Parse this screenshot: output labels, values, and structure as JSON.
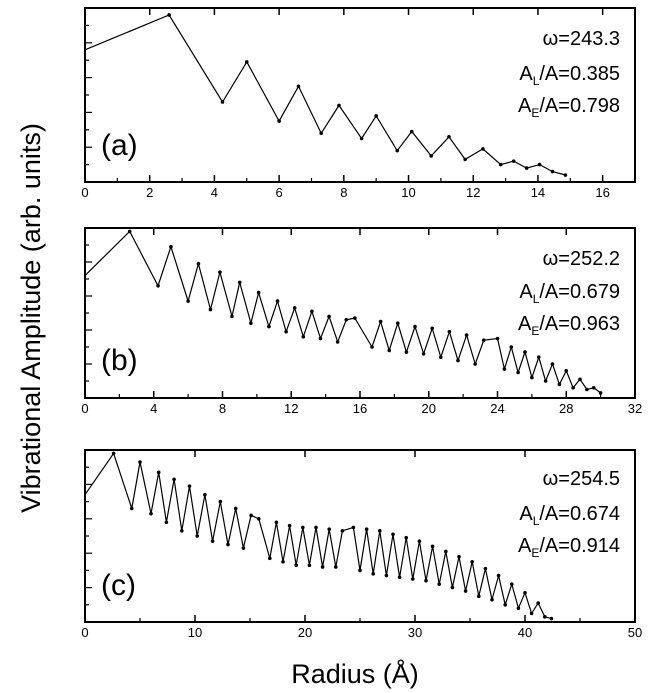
{
  "figure": {
    "ylabel": "Vibrational Amplitude (arb. units)",
    "xlabel": "Radius (Å)"
  },
  "chart_data": [
    {
      "type": "line",
      "panel": "(a)",
      "xlim": [
        0,
        17
      ],
      "ylim": [
        0,
        1.0
      ],
      "xticks": [
        0,
        2,
        4,
        6,
        8,
        10,
        12,
        14,
        16
      ],
      "y_tick_labels": false,
      "annotation": {
        "omega": "ω=243.3",
        "al_main": "A",
        "al_sub": "L",
        "al_val": "/A=0.385",
        "ae_main": "A",
        "ae_sub": "E",
        "ae_val": "/A=0.798"
      },
      "series": [
        {
          "x": [
            0,
            2.6,
            4.25,
            5.0,
            6.0,
            6.6,
            7.3,
            7.85,
            8.55,
            9.0,
            9.65,
            10.1,
            10.7,
            11.25,
            11.75,
            12.3,
            12.85,
            13.25,
            13.65,
            14.05,
            14.45,
            14.85
          ],
          "y": [
            0.76,
            0.96,
            0.46,
            0.69,
            0.35,
            0.55,
            0.28,
            0.44,
            0.25,
            0.38,
            0.18,
            0.29,
            0.15,
            0.26,
            0.13,
            0.19,
            0.1,
            0.12,
            0.08,
            0.1,
            0.06,
            0.04
          ]
        }
      ]
    },
    {
      "type": "line",
      "panel": "(b)",
      "xlim": [
        0,
        32
      ],
      "ylim": [
        0,
        1.0
      ],
      "xticks": [
        0,
        4,
        8,
        12,
        16,
        20,
        24,
        28,
        32
      ],
      "y_tick_labels": false,
      "annotation": {
        "omega": "ω=252.2",
        "al_main": "A",
        "al_sub": "L",
        "al_val": "/A=0.679",
        "ae_main": "A",
        "ae_sub": "E",
        "ae_val": "/A=0.963"
      },
      "series": [
        {
          "x": [
            0,
            2.6,
            4.25,
            5.0,
            6.0,
            6.6,
            7.3,
            7.85,
            8.55,
            9.0,
            9.65,
            10.1,
            10.7,
            11.2,
            11.7,
            12.2,
            12.7,
            13.2,
            13.7,
            14.2,
            14.7,
            15.2,
            15.7,
            16.7,
            17.2,
            17.7,
            18.2,
            18.7,
            19.2,
            19.7,
            20.2,
            20.7,
            21.2,
            21.7,
            22.2,
            22.7,
            23.2,
            24.0,
            24.4,
            24.8,
            25.2,
            25.6,
            26.0,
            26.4,
            26.8,
            27.2,
            27.6,
            28.0,
            28.4,
            28.8,
            29.2,
            29.6,
            30.0
          ],
          "y": [
            0.72,
            0.98,
            0.66,
            0.89,
            0.57,
            0.79,
            0.52,
            0.74,
            0.48,
            0.68,
            0.44,
            0.62,
            0.42,
            0.57,
            0.39,
            0.53,
            0.36,
            0.51,
            0.35,
            0.48,
            0.33,
            0.46,
            0.47,
            0.3,
            0.45,
            0.28,
            0.44,
            0.27,
            0.42,
            0.26,
            0.41,
            0.24,
            0.39,
            0.22,
            0.37,
            0.2,
            0.34,
            0.35,
            0.17,
            0.3,
            0.15,
            0.27,
            0.12,
            0.24,
            0.1,
            0.2,
            0.08,
            0.16,
            0.06,
            0.11,
            0.05,
            0.06,
            0.03
          ]
        }
      ]
    },
    {
      "type": "line",
      "panel": "(c)",
      "xlim": [
        0,
        50
      ],
      "ylim": [
        0,
        1.0
      ],
      "xticks": [
        0,
        10,
        20,
        30,
        40,
        50
      ],
      "y_tick_labels": false,
      "annotation": {
        "omega": "ω=254.5",
        "al_main": "A",
        "al_sub": "L",
        "al_val": "/A=0.674",
        "ae_main": "A",
        "ae_sub": "E",
        "ae_val": "/A=0.914"
      },
      "series": [
        {
          "x": [
            0,
            2.6,
            4.25,
            5.0,
            6.0,
            6.7,
            7.4,
            8.1,
            8.8,
            9.5,
            10.2,
            10.9,
            11.6,
            12.3,
            13.0,
            13.7,
            14.4,
            15.1,
            15.8,
            16.8,
            17.4,
            18.0,
            18.6,
            19.2,
            19.8,
            20.4,
            21.0,
            21.6,
            22.2,
            22.8,
            23.4,
            24.4,
            25.0,
            25.6,
            26.2,
            26.8,
            27.4,
            28.0,
            28.6,
            29.2,
            29.8,
            30.4,
            31.0,
            31.6,
            32.2,
            32.8,
            33.4,
            34.0,
            34.6,
            35.2,
            35.8,
            36.4,
            37.0,
            37.6,
            38.2,
            38.8,
            39.4,
            40.0,
            40.6,
            41.2,
            41.8,
            42.4
          ],
          "y": [
            0.74,
            0.98,
            0.66,
            0.93,
            0.63,
            0.87,
            0.58,
            0.83,
            0.53,
            0.79,
            0.5,
            0.74,
            0.47,
            0.7,
            0.45,
            0.66,
            0.43,
            0.62,
            0.6,
            0.37,
            0.58,
            0.35,
            0.56,
            0.33,
            0.55,
            0.33,
            0.55,
            0.32,
            0.54,
            0.32,
            0.53,
            0.55,
            0.3,
            0.54,
            0.28,
            0.53,
            0.27,
            0.51,
            0.26,
            0.49,
            0.25,
            0.47,
            0.24,
            0.44,
            0.22,
            0.41,
            0.2,
            0.38,
            0.18,
            0.35,
            0.15,
            0.31,
            0.13,
            0.27,
            0.1,
            0.22,
            0.08,
            0.17,
            0.05,
            0.11,
            0.03,
            0.02
          ]
        }
      ]
    }
  ]
}
